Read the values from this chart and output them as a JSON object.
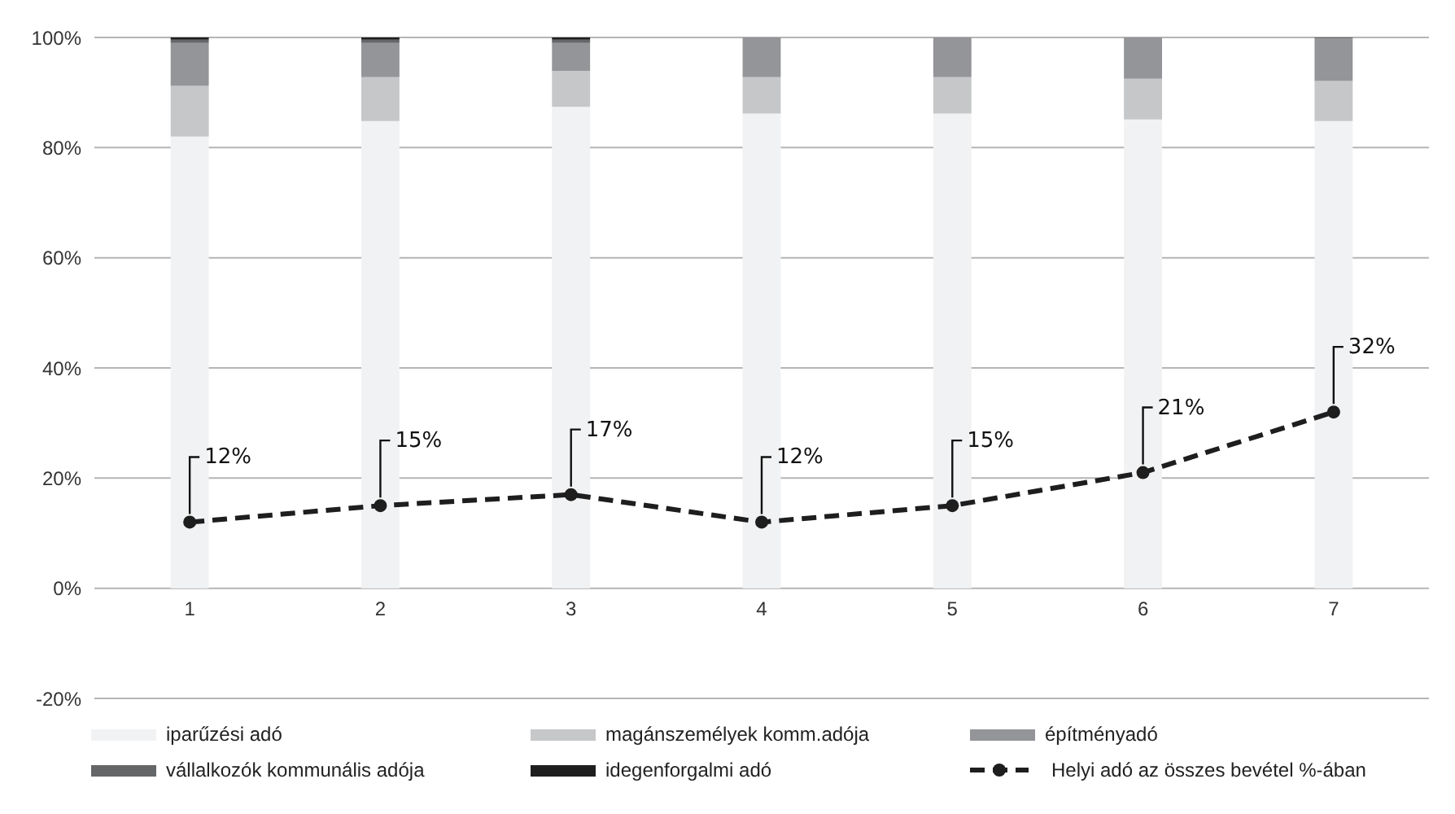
{
  "chart_data": {
    "type": "bar",
    "stacked": true,
    "categories": [
      "1",
      "2",
      "3",
      "4",
      "5",
      "6",
      "7"
    ],
    "series": [
      {
        "name": "iparűzési adó",
        "color": "#f1f2f3",
        "values": [
          82.0,
          84.8,
          87.4,
          86.2,
          86.2,
          85.1,
          84.8
        ]
      },
      {
        "name": "magánszemélyek komm.adója",
        "color": "#c6c7c9",
        "values": [
          9.2,
          8.0,
          6.5,
          6.6,
          6.6,
          7.4,
          7.3
        ]
      },
      {
        "name": "építményadó",
        "color": "#949598",
        "values": [
          7.8,
          6.2,
          5.1,
          7.2,
          7.2,
          7.5,
          7.7
        ]
      },
      {
        "name": "vállalkozók kommunális adója",
        "color": "#656668",
        "values": [
          0.6,
          0.6,
          0.6,
          0,
          0,
          0,
          0.2
        ]
      },
      {
        "name": "idegenforgalmi adó",
        "color": "#1e1e1e",
        "values": [
          0.4,
          0.4,
          0.4,
          0,
          0,
          0,
          0
        ]
      },
      {
        "name": "Helyi adó az összes bevétel %-ában",
        "type": "line",
        "color": "#1e1e1e",
        "line_style": "dashed",
        "marker": "circle",
        "values": [
          12,
          15,
          17,
          12,
          15,
          21,
          32
        ],
        "value_labels": [
          "12%",
          "15%",
          "17%",
          "12%",
          "15%",
          "21%",
          "32%"
        ]
      }
    ],
    "ylim": [
      -20,
      100
    ],
    "yticks": [
      {
        "value": -20,
        "label": "-20%"
      },
      {
        "value": 0,
        "label": "0%"
      },
      {
        "value": 20,
        "label": "20%"
      },
      {
        "value": 40,
        "label": "40%"
      },
      {
        "value": 60,
        "label": "60%"
      },
      {
        "value": 80,
        "label": "80%"
      },
      {
        "value": 100,
        "label": "100%"
      }
    ],
    "grid": "y",
    "legend": "bottom"
  }
}
